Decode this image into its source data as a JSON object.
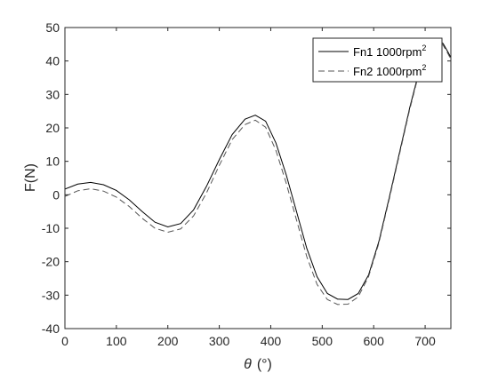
{
  "chart_data": {
    "type": "line",
    "xlabel_symbol": "θ",
    "xlabel_unit": "(°)",
    "ylabel": "F(N)",
    "xlim": [
      0,
      750
    ],
    "ylim": [
      -40,
      50
    ],
    "xticks": [
      0,
      100,
      200,
      300,
      400,
      500,
      600,
      700
    ],
    "yticks": [
      -40,
      -30,
      -20,
      -10,
      0,
      10,
      20,
      30,
      40,
      50
    ],
    "grid": false,
    "legend_position": "top-right",
    "series": [
      {
        "name_base": "Fn1 1000rpm",
        "name_sup": "2",
        "style": "solid",
        "color": "#000000",
        "points": [
          [
            0,
            1.7
          ],
          [
            25,
            3.2
          ],
          [
            50,
            3.7
          ],
          [
            75,
            3.0
          ],
          [
            100,
            1.3
          ],
          [
            125,
            -1.5
          ],
          [
            150,
            -5.0
          ],
          [
            175,
            -8.2
          ],
          [
            200,
            -9.6
          ],
          [
            225,
            -8.6
          ],
          [
            250,
            -4.5
          ],
          [
            275,
            2.5
          ],
          [
            300,
            10.5
          ],
          [
            325,
            18.0
          ],
          [
            350,
            22.6
          ],
          [
            370,
            23.8
          ],
          [
            390,
            22.0
          ],
          [
            410,
            15.5
          ],
          [
            430,
            6.0
          ],
          [
            450,
            -5.0
          ],
          [
            470,
            -16.0
          ],
          [
            490,
            -24.5
          ],
          [
            510,
            -29.5
          ],
          [
            530,
            -31.2
          ],
          [
            550,
            -31.3
          ],
          [
            570,
            -29.5
          ],
          [
            590,
            -24.0
          ],
          [
            610,
            -14.0
          ],
          [
            630,
            -1.0
          ],
          [
            650,
            12.5
          ],
          [
            670,
            26.0
          ],
          [
            690,
            38.0
          ],
          [
            705,
            44.0
          ],
          [
            715,
            46.0
          ],
          [
            725,
            46.3
          ],
          [
            735,
            45.2
          ],
          [
            745,
            42.5
          ],
          [
            750,
            41.0
          ]
        ]
      },
      {
        "name_base": "Fn2 1000rpm",
        "name_sup": "2",
        "style": "dashed",
        "color": "#555555",
        "points": [
          [
            0,
            -0.5
          ],
          [
            25,
            1.2
          ],
          [
            50,
            1.8
          ],
          [
            75,
            1.1
          ],
          [
            100,
            -0.7
          ],
          [
            125,
            -3.5
          ],
          [
            150,
            -7.0
          ],
          [
            175,
            -10.0
          ],
          [
            200,
            -11.2
          ],
          [
            225,
            -10.2
          ],
          [
            250,
            -6.3
          ],
          [
            275,
            0.5
          ],
          [
            300,
            8.8
          ],
          [
            325,
            16.5
          ],
          [
            350,
            21.0
          ],
          [
            370,
            22.3
          ],
          [
            390,
            20.2
          ],
          [
            410,
            13.3
          ],
          [
            430,
            3.5
          ],
          [
            450,
            -7.5
          ],
          [
            470,
            -18.5
          ],
          [
            490,
            -26.8
          ],
          [
            510,
            -31.3
          ],
          [
            530,
            -32.8
          ],
          [
            550,
            -32.7
          ],
          [
            570,
            -30.5
          ],
          [
            590,
            -24.5
          ],
          [
            610,
            -14.5
          ],
          [
            630,
            -1.5
          ],
          [
            650,
            12.0
          ],
          [
            670,
            25.5
          ],
          [
            690,
            37.5
          ],
          [
            705,
            43.5
          ],
          [
            715,
            45.5
          ],
          [
            725,
            45.8
          ],
          [
            735,
            44.7
          ],
          [
            745,
            42.0
          ],
          [
            750,
            40.5
          ]
        ]
      }
    ]
  }
}
